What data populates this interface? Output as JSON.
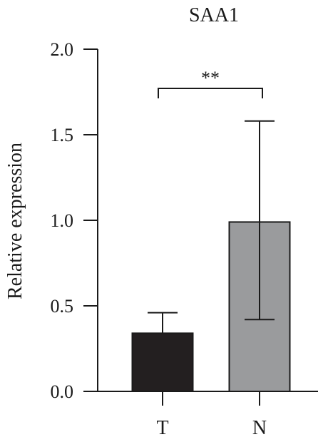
{
  "chart_data": {
    "type": "bar",
    "title": "SAA1",
    "xlabel": "",
    "ylabel": "Relative expression",
    "categories": [
      "T",
      "N"
    ],
    "values": [
      0.34,
      0.99
    ],
    "error_upper": [
      0.46,
      1.58
    ],
    "error_lower": [
      0.34,
      0.42
    ],
    "bar_colors": [
      "#231f20",
      "#9a9b9d"
    ],
    "ylim": [
      0.0,
      2.0
    ],
    "yticks": [
      "0.0",
      "0.5",
      "1.0",
      "1.5",
      "2.0"
    ],
    "grid": false,
    "significance": {
      "between": [
        "T",
        "N"
      ],
      "label": "**"
    }
  }
}
